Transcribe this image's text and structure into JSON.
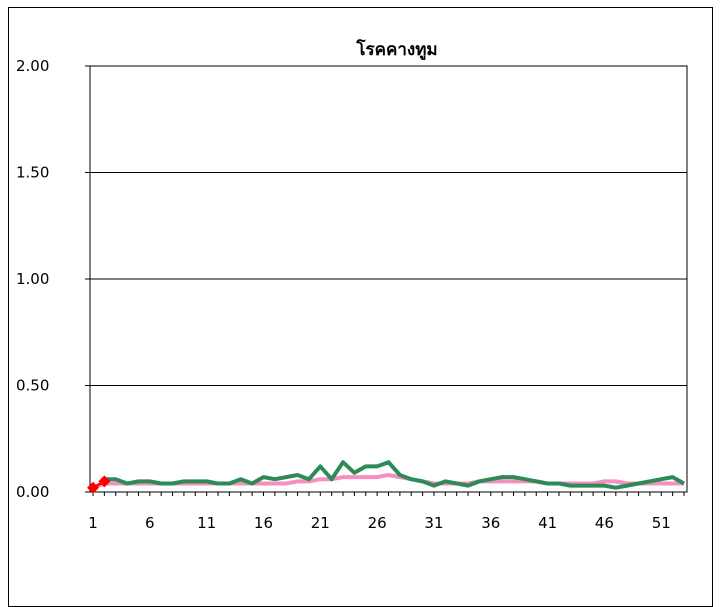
{
  "chart_data": {
    "type": "line",
    "title": "โรคคางทูม",
    "xlabel": "",
    "ylabel": "",
    "ylim": [
      0,
      2.0
    ],
    "yticks": [
      "0.00",
      "0.50",
      "1.00",
      "1.50",
      "2.00"
    ],
    "xlim": [
      1,
      53
    ],
    "xticks": [
      "1",
      "6",
      "11",
      "16",
      "21",
      "26",
      "31",
      "36",
      "41",
      "46",
      "51"
    ],
    "grid": true,
    "series": [
      {
        "color": "#f48fbf",
        "x": [
          1,
          2,
          3,
          4,
          5,
          6,
          7,
          8,
          9,
          10,
          11,
          12,
          13,
          14,
          15,
          16,
          17,
          18,
          19,
          20,
          21,
          22,
          23,
          24,
          25,
          26,
          27,
          28,
          29,
          30,
          31,
          32,
          33,
          34,
          35,
          36,
          37,
          38,
          39,
          40,
          41,
          42,
          43,
          44,
          45,
          46,
          47,
          48,
          49,
          50,
          51,
          52,
          53
        ],
        "values": [
          0.02,
          0.04,
          0.04,
          0.04,
          0.04,
          0.04,
          0.04,
          0.04,
          0.04,
          0.04,
          0.04,
          0.04,
          0.04,
          0.04,
          0.04,
          0.04,
          0.04,
          0.04,
          0.05,
          0.05,
          0.06,
          0.06,
          0.07,
          0.07,
          0.07,
          0.07,
          0.08,
          0.07,
          0.06,
          0.05,
          0.04,
          0.04,
          0.04,
          0.04,
          0.05,
          0.05,
          0.05,
          0.05,
          0.05,
          0.05,
          0.04,
          0.04,
          0.04,
          0.04,
          0.04,
          0.05,
          0.05,
          0.04,
          0.04,
          0.04,
          0.04,
          0.04,
          0.04
        ]
      },
      {
        "color": "#2e8b57",
        "x": [
          2,
          3,
          4,
          5,
          6,
          7,
          8,
          9,
          10,
          11,
          12,
          13,
          14,
          15,
          16,
          17,
          18,
          19,
          20,
          21,
          22,
          23,
          24,
          25,
          26,
          27,
          28,
          29,
          30,
          31,
          32,
          33,
          34,
          35,
          36,
          37,
          38,
          39,
          40,
          41,
          42,
          43,
          44,
          45,
          46,
          47,
          48,
          49,
          50,
          51,
          52,
          53
        ],
        "values": [
          0.06,
          0.06,
          0.04,
          0.05,
          0.05,
          0.04,
          0.04,
          0.05,
          0.05,
          0.05,
          0.04,
          0.04,
          0.06,
          0.04,
          0.07,
          0.06,
          0.07,
          0.08,
          0.06,
          0.12,
          0.06,
          0.14,
          0.09,
          0.12,
          0.12,
          0.14,
          0.08,
          0.06,
          0.05,
          0.03,
          0.05,
          0.04,
          0.03,
          0.05,
          0.06,
          0.07,
          0.07,
          0.06,
          0.05,
          0.04,
          0.04,
          0.03,
          0.03,
          0.03,
          0.03,
          0.02,
          0.03,
          0.04,
          0.05,
          0.06,
          0.07,
          0.04
        ]
      },
      {
        "color": "#ff0000",
        "marker": "diamond",
        "x": [
          1,
          2
        ],
        "values": [
          0.02,
          0.05
        ]
      }
    ]
  }
}
